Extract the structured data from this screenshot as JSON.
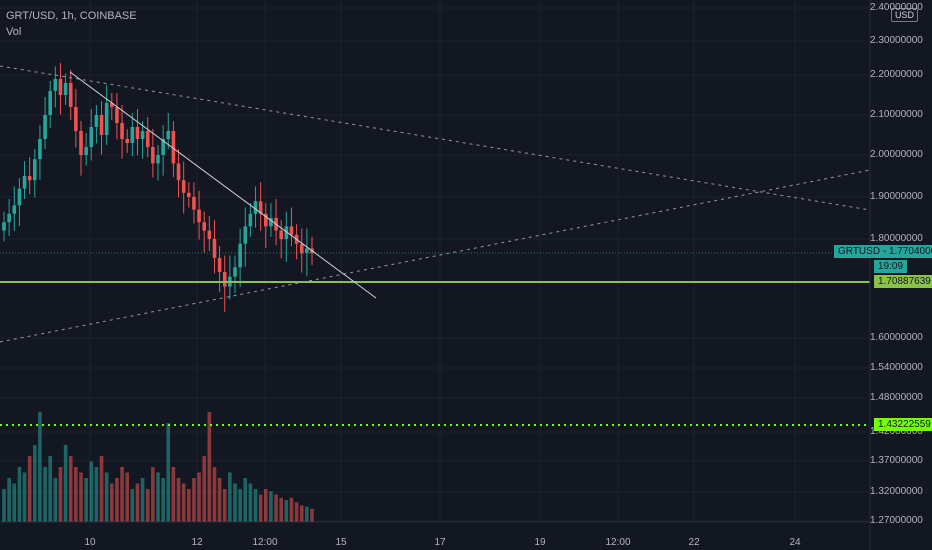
{
  "header": {
    "symbol_line": "GRT/USD, 1h, COINBASE",
    "volume_label": "Vol"
  },
  "price_axis": {
    "currency_button": "USD",
    "ticks": [
      "2.40000000",
      "2.30000000",
      "2.20000000",
      "2.10000000",
      "2.00000000",
      "1.90000000",
      "1.80000000",
      "1.60000000",
      "1.54000000",
      "1.48000000",
      "1.42000000",
      "1.37000000",
      "1.32000000",
      "1.27000000"
    ]
  },
  "time_axis": {
    "ticks": [
      "10",
      "12",
      "12:00",
      "15",
      "17",
      "19",
      "12:00",
      "22",
      "24"
    ]
  },
  "price_tags": {
    "current_label": "GRTUSD",
    "current_price": "1.77040000",
    "countdown": "19:09",
    "support_level": "1.70887639",
    "dotted_level": "1.43222559"
  },
  "colors": {
    "background": "#131722",
    "up": "#26a69a",
    "down": "#ef5350",
    "support_line": "#8bc34a",
    "dotted_line": "#76ff03",
    "trend_line": "#d1d4dc",
    "axis_text": "#b2b5be"
  },
  "chart_data": {
    "type": "candlestick",
    "symbol": "GRT/USD",
    "interval": "1h",
    "exchange": "COINBASE",
    "ylim": [
      1.27,
      2.4
    ],
    "current_price": 1.7704,
    "horizontal_levels": [
      1.70887639,
      1.43222559
    ],
    "candles_close": [
      1.84,
      1.86,
      1.88,
      1.92,
      1.95,
      1.94,
      1.99,
      2.04,
      2.1,
      2.16,
      2.19,
      2.15,
      2.18,
      2.12,
      2.06,
      2.0,
      2.02,
      2.07,
      2.1,
      2.05,
      2.13,
      2.12,
      2.08,
      2.04,
      2.03,
      2.07,
      2.04,
      2.06,
      2.02,
      1.98,
      2.0,
      2.04,
      2.06,
      1.98,
      1.94,
      1.91,
      1.9,
      1.87,
      1.84,
      1.82,
      1.8,
      1.76,
      1.73,
      1.7,
      1.72,
      1.74,
      1.79,
      1.83,
      1.86,
      1.89,
      1.86,
      1.83,
      1.85,
      1.82,
      1.8,
      1.83,
      1.81,
      1.79,
      1.77,
      1.78,
      1.77
    ],
    "volume": [
      0.3,
      0.4,
      0.35,
      0.5,
      0.45,
      0.6,
      0.7,
      1.0,
      0.5,
      0.6,
      0.4,
      0.5,
      0.7,
      0.6,
      0.5,
      0.45,
      0.4,
      0.55,
      0.5,
      0.6,
      0.45,
      0.35,
      0.4,
      0.5,
      0.45,
      0.3,
      0.35,
      0.4,
      0.3,
      0.5,
      0.45,
      0.4,
      0.9,
      0.5,
      0.4,
      0.35,
      0.3,
      0.4,
      0.45,
      0.6,
      1.0,
      0.5,
      0.4,
      0.3,
      0.45,
      0.35,
      0.3,
      0.4,
      0.35,
      0.3,
      0.25,
      0.3,
      0.28,
      0.25,
      0.22,
      0.2,
      0.22,
      0.18,
      0.15,
      0.14,
      0.12
    ]
  }
}
